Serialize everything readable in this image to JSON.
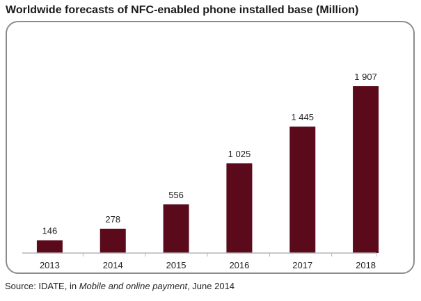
{
  "chart_data": {
    "type": "bar",
    "title": "Worldwide forecasts of NFC-enabled phone installed base (Million)",
    "categories": [
      "2013",
      "2014",
      "2015",
      "2016",
      "2017",
      "2018"
    ],
    "values": [
      146,
      278,
      556,
      1025,
      1445,
      1907
    ],
    "data_labels": [
      "146",
      "278",
      "556",
      "1 025",
      "1 445",
      "1 907"
    ],
    "xlabel": "",
    "ylabel": "",
    "ylim": [
      0,
      1907
    ],
    "grid": false,
    "legend": "none",
    "bar_color": "#5a0a1a"
  },
  "source": {
    "prefix": "Source: IDATE, in ",
    "publication": "Mobile and online payment",
    "suffix": ", June 2014"
  }
}
